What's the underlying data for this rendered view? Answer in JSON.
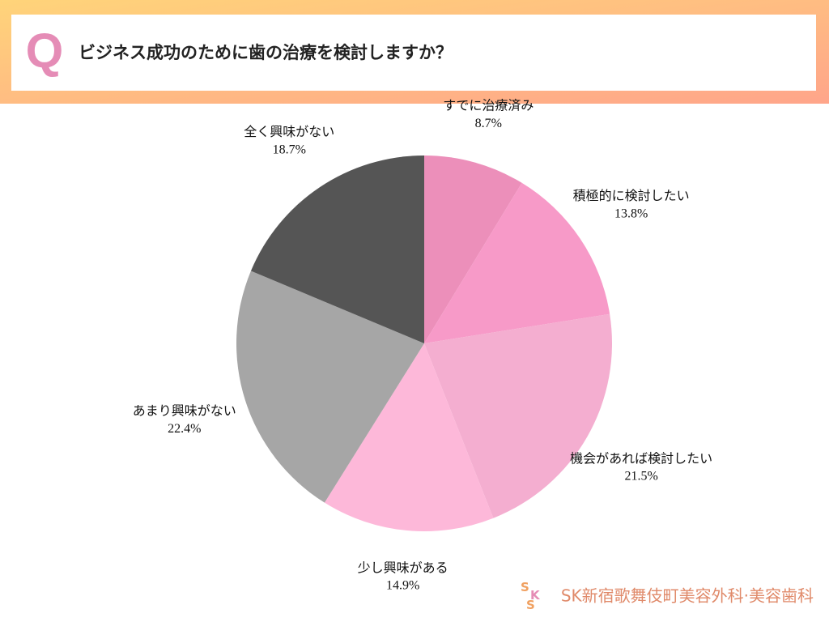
{
  "header": {
    "mark": "Q"
  },
  "chart_data": {
    "type": "pie",
    "title": "ビジネス成功のために歯の治療を検討しますか？",
    "categories": [
      "すでに治療済み",
      "積極的に検討したい",
      "機会があれば検討したい",
      "少し興味がある",
      "あまり興味がない",
      "全く興味がない"
    ],
    "values": [
      8.7,
      13.8,
      21.5,
      14.9,
      22.4,
      18.7
    ],
    "value_labels": [
      "8.7%",
      "13.8%",
      "21.5%",
      "14.9%",
      "22.4%",
      "18.7%"
    ],
    "colors": [
      "#ec8fba",
      "#f79ac8",
      "#f4aed0",
      "#fdb8d9",
      "#a6a6a6",
      "#555555"
    ]
  },
  "footer": {
    "logo": "SK新宿歌舞伎町美容外科·美容歯科"
  }
}
